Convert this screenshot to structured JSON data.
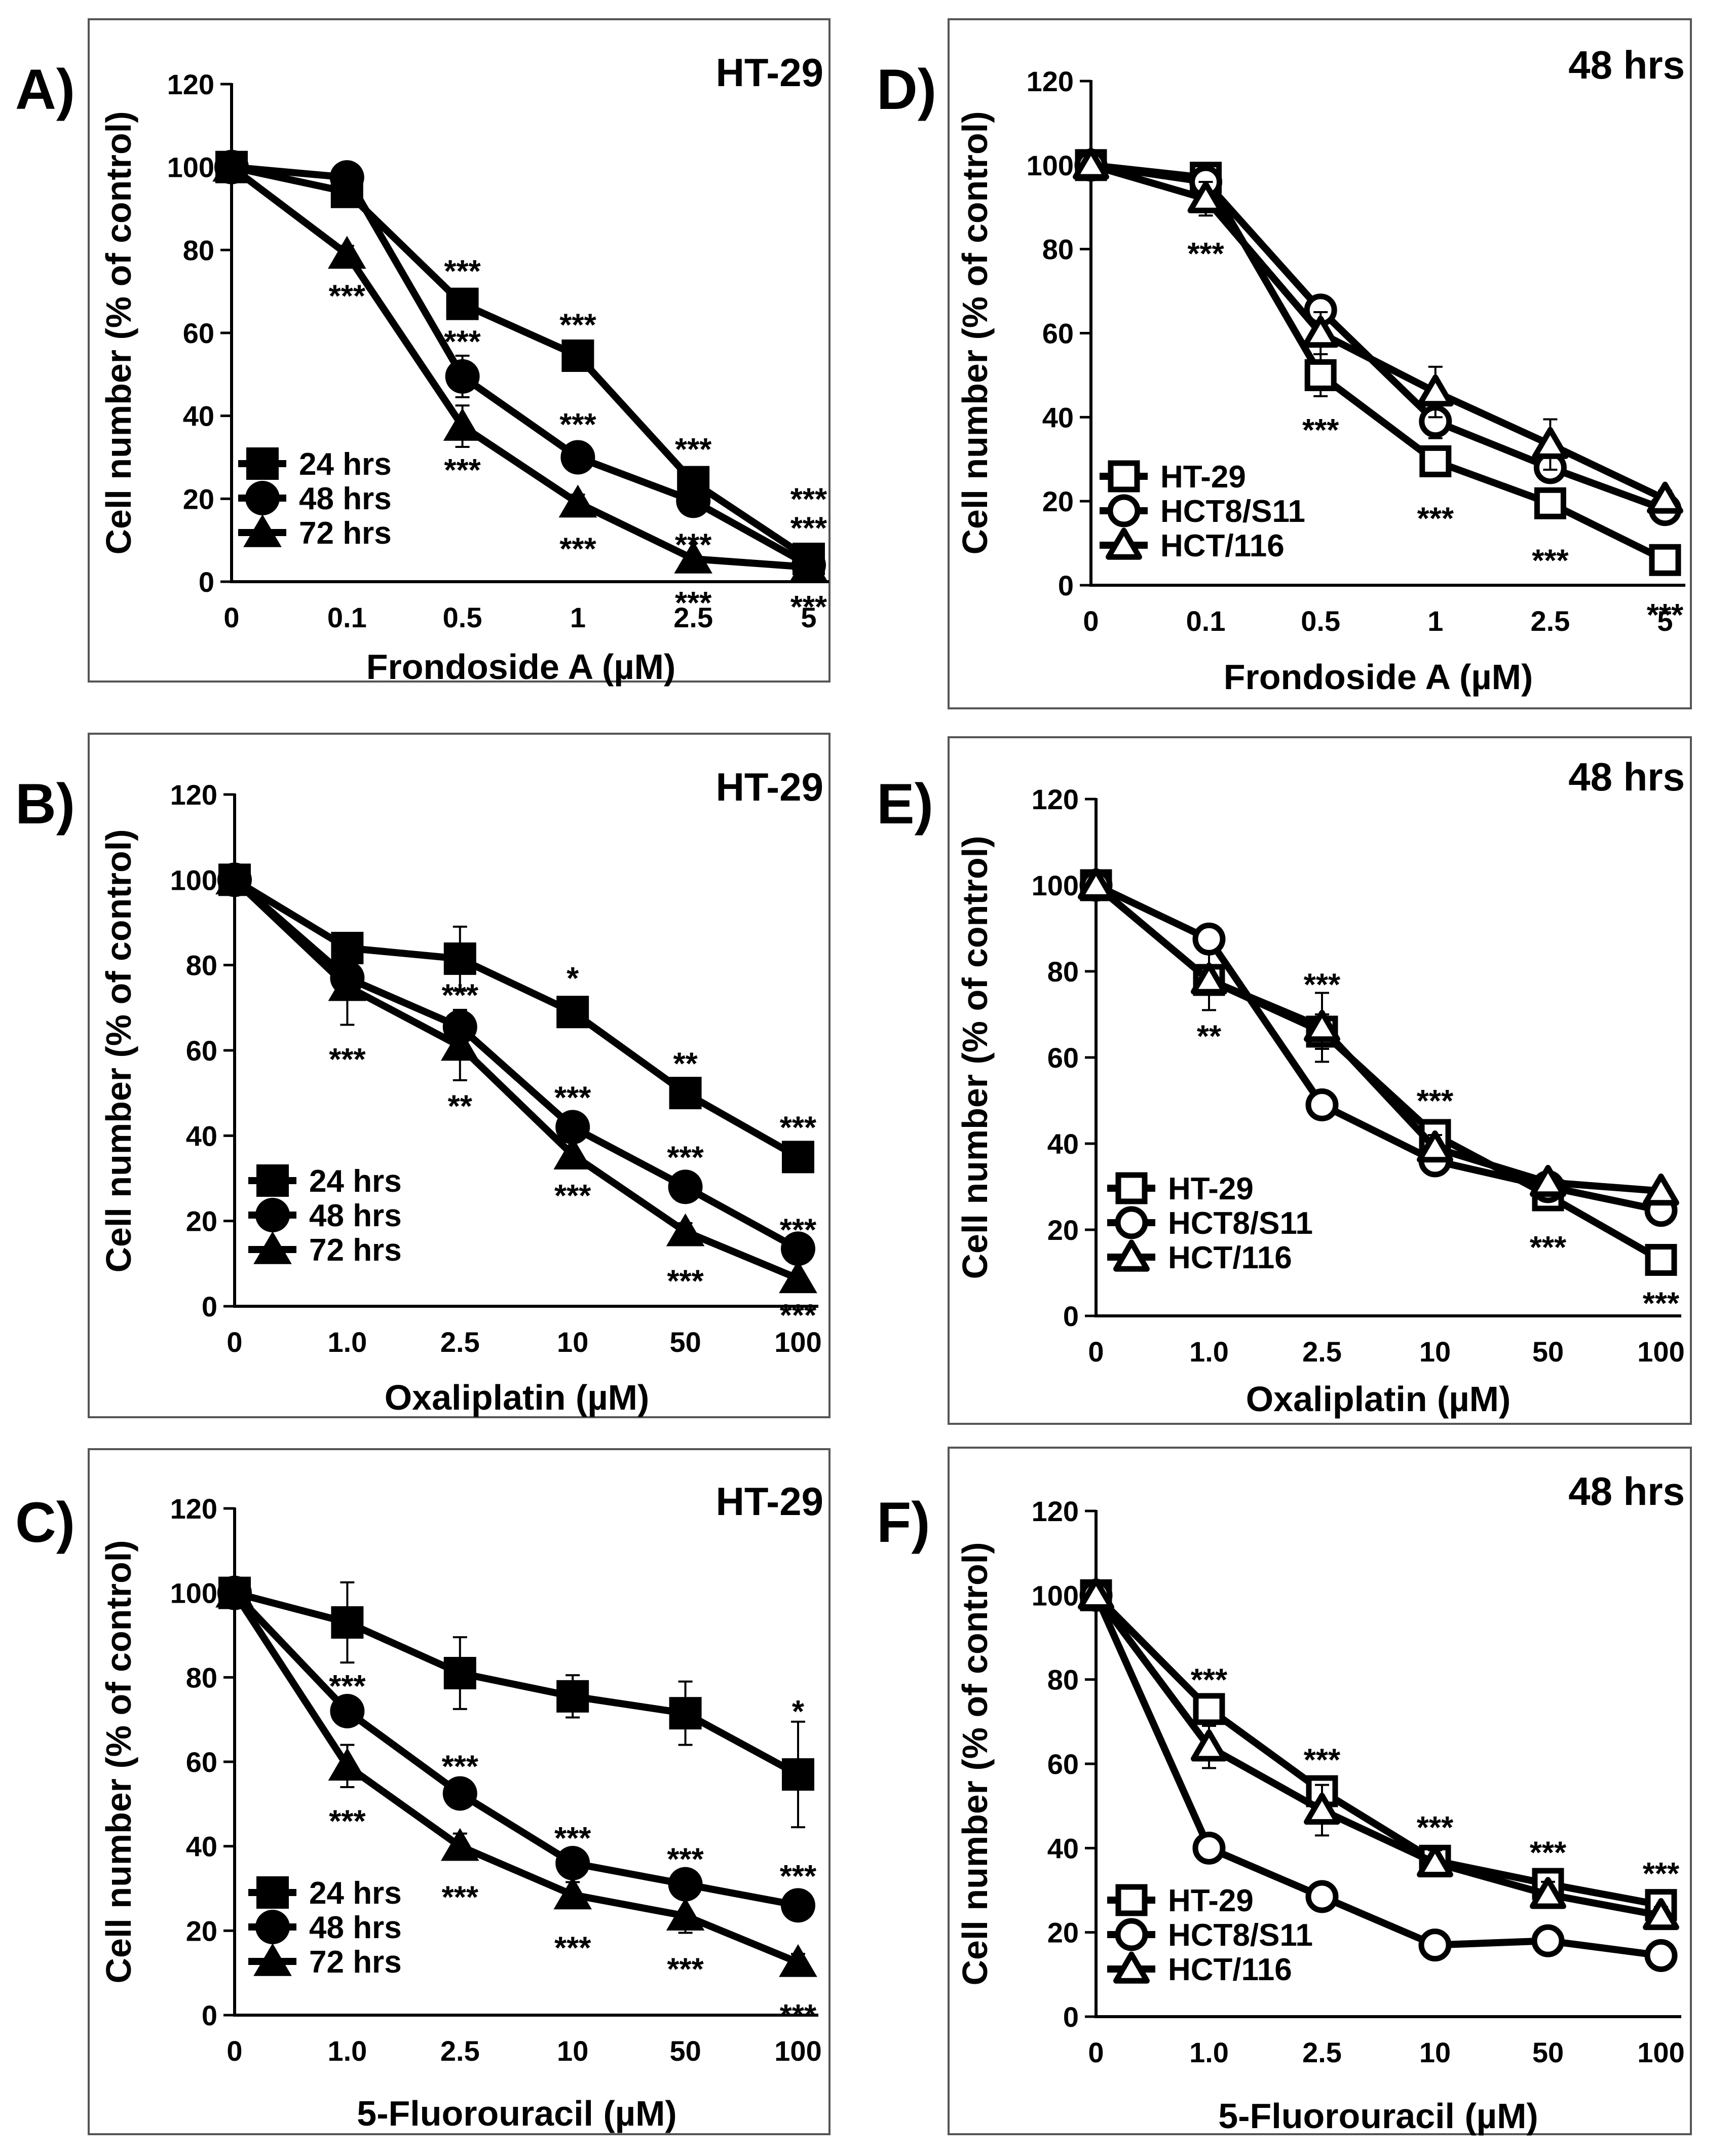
{
  "figure": {
    "colors": {
      "ink": "#000000",
      "frame": "#555555",
      "background": "#ffffff"
    },
    "axis": {
      "ylabel": "Cell number (% of control)",
      "yticks": [
        0,
        20,
        40,
        60,
        80,
        100,
        120
      ]
    }
  },
  "chart_data": [
    {
      "panel": "A)",
      "type": "line",
      "title": "HT-29",
      "xlabel": "Frondoside A (µM)",
      "ylabel": "Cell number (% of control)",
      "categories": [
        "0",
        "0.1",
        "0.5",
        "1",
        "2.5",
        "5"
      ],
      "ylim": [
        0,
        120
      ],
      "legend_position": "bottom-left",
      "series": [
        {
          "name": "24 hrs",
          "marker": "square-filled",
          "values": [
            100,
            94,
            67,
            54.5,
            24,
            5.5
          ],
          "errors": [
            0,
            2,
            3,
            2,
            3,
            1
          ]
        },
        {
          "name": "48 hrs",
          "marker": "circle-filled",
          "values": [
            100,
            97.5,
            49.5,
            30,
            19.5,
            4
          ],
          "errors": [
            0,
            3,
            5,
            3,
            2,
            1
          ]
        },
        {
          "name": "72 hrs",
          "marker": "triangle-filled",
          "values": [
            100,
            79,
            37.5,
            19,
            5.5,
            3.5
          ],
          "errors": [
            0,
            2,
            5,
            2,
            1,
            1
          ]
        }
      ],
      "annotations": [
        {
          "text": "***",
          "x": 1,
          "y": 69
        },
        {
          "text": "***",
          "x": 2,
          "y": 75
        },
        {
          "text": "***",
          "x": 2,
          "y": 58
        },
        {
          "text": "***",
          "x": 2,
          "y": 27
        },
        {
          "text": "***",
          "x": 3,
          "y": 62
        },
        {
          "text": "***",
          "x": 3,
          "y": 38
        },
        {
          "text": "***",
          "x": 3,
          "y": 8
        },
        {
          "text": "***",
          "x": 4,
          "y": 32
        },
        {
          "text": "***",
          "x": 4,
          "y": 9
        },
        {
          "text": "***",
          "x": 4,
          "y": -5
        },
        {
          "text": "***",
          "x": 5,
          "y": 20
        },
        {
          "text": "***",
          "x": 5,
          "y": 13
        },
        {
          "text": "***",
          "x": 5,
          "y": -6
        }
      ]
    },
    {
      "panel": "B)",
      "type": "line",
      "title": "HT-29",
      "xlabel": "Oxaliplatin (µM)",
      "ylabel": "Cell number (% of control)",
      "categories": [
        "0",
        "1.0",
        "2.5",
        "10",
        "50",
        "100"
      ],
      "ylim": [
        0,
        120
      ],
      "legend_position": "bottom-left",
      "series": [
        {
          "name": "24 hrs",
          "marker": "square-filled",
          "values": [
            100,
            84,
            81.5,
            69,
            50,
            35
          ],
          "errors": [
            0,
            3,
            7.5,
            3,
            3,
            2
          ]
        },
        {
          "name": "48 hrs",
          "marker": "circle-filled",
          "values": [
            100,
            77,
            65.5,
            42,
            28,
            13.5
          ],
          "errors": [
            0,
            4,
            4,
            3,
            2,
            2
          ]
        },
        {
          "name": "72 hrs",
          "marker": "triangle-filled",
          "values": [
            100,
            75,
            61,
            35.5,
            17.5,
            6.5
          ],
          "errors": [
            0,
            9,
            8,
            3,
            2,
            1
          ]
        }
      ],
      "annotations": [
        {
          "text": "***",
          "x": 1,
          "y": 58
        },
        {
          "text": "***",
          "x": 2,
          "y": 73
        },
        {
          "text": "**",
          "x": 2,
          "y": 47
        },
        {
          "text": "*",
          "x": 3,
          "y": 77
        },
        {
          "text": "***",
          "x": 3,
          "y": 49
        },
        {
          "text": "***",
          "x": 3,
          "y": 26
        },
        {
          "text": "**",
          "x": 4,
          "y": 57
        },
        {
          "text": "***",
          "x": 4,
          "y": 35
        },
        {
          "text": "***",
          "x": 4,
          "y": 6
        },
        {
          "text": "***",
          "x": 5,
          "y": 42
        },
        {
          "text": "***",
          "x": 5,
          "y": 18
        },
        {
          "text": "***",
          "x": 5,
          "y": -2
        }
      ]
    },
    {
      "panel": "C)",
      "type": "line",
      "title": "HT-29",
      "xlabel": "5-Fluorouracil (µM)",
      "ylabel": "Cell number (% of control)",
      "categories": [
        "0",
        "1.0",
        "2.5",
        "10",
        "50",
        "100"
      ],
      "ylim": [
        0,
        120
      ],
      "legend_position": "bottom-left",
      "series": [
        {
          "name": "24 hrs",
          "marker": "square-filled",
          "values": [
            100,
            93,
            81,
            75.5,
            71.5,
            57
          ],
          "errors": [
            0,
            9.5,
            8.5,
            5,
            7.5,
            12.5
          ]
        },
        {
          "name": "48 hrs",
          "marker": "circle-filled",
          "values": [
            100,
            72,
            52.5,
            36,
            31,
            26
          ],
          "errors": [
            0,
            3,
            3,
            3,
            3,
            2
          ]
        },
        {
          "name": "72 hrs",
          "marker": "triangle-filled",
          "values": [
            100,
            59,
            40,
            28.5,
            23.5,
            12.5
          ],
          "errors": [
            0,
            5,
            3,
            3,
            4,
            2
          ]
        }
      ],
      "annotations": [
        {
          "text": "***",
          "x": 1,
          "y": 78
        },
        {
          "text": "***",
          "x": 1,
          "y": 46
        },
        {
          "text": "***",
          "x": 2,
          "y": 59
        },
        {
          "text": "***",
          "x": 2,
          "y": 28
        },
        {
          "text": "***",
          "x": 3,
          "y": 42
        },
        {
          "text": "***",
          "x": 3,
          "y": 16
        },
        {
          "text": "***",
          "x": 4,
          "y": 37
        },
        {
          "text": "***",
          "x": 4,
          "y": 11
        },
        {
          "text": "*",
          "x": 5,
          "y": 72
        },
        {
          "text": "***",
          "x": 5,
          "y": 33
        },
        {
          "text": "***",
          "x": 5,
          "y": 0
        }
      ]
    },
    {
      "panel": "D)",
      "type": "line",
      "title": "48 hrs",
      "xlabel": "Frondoside A (µM)",
      "ylabel": "Cell number (% of control)",
      "categories": [
        "0",
        "0.1",
        "0.5",
        "1",
        "2.5",
        "5"
      ],
      "ylim": [
        0,
        120
      ],
      "legend_position": "bottom-left",
      "series": [
        {
          "name": "HT-29",
          "marker": "square-open",
          "values": [
            100,
            97,
            50,
            29.5,
            19.5,
            6
          ],
          "errors": [
            0,
            3,
            5,
            3,
            2,
            1
          ]
        },
        {
          "name": "HCT8/S11",
          "marker": "circle-open",
          "values": [
            100,
            96,
            65.5,
            39,
            28,
            18
          ],
          "errors": [
            0,
            2,
            3,
            4,
            3,
            2
          ]
        },
        {
          "name": "HCT/116",
          "marker": "triangle-open",
          "values": [
            100,
            92,
            60,
            46,
            33.5,
            20.5
          ],
          "errors": [
            0,
            4,
            5,
            6,
            6,
            2
          ]
        }
      ],
      "annotations": [
        {
          "text": "***",
          "x": 1,
          "y": 79
        },
        {
          "text": "***",
          "x": 2,
          "y": 37
        },
        {
          "text": "***",
          "x": 3,
          "y": 16
        },
        {
          "text": "***",
          "x": 4,
          "y": 6
        },
        {
          "text": "***",
          "x": 5,
          "y": -7
        }
      ]
    },
    {
      "panel": "E)",
      "type": "line",
      "title": "48 hrs",
      "xlabel": "Oxaliplatin (µM)",
      "ylabel": "Cell number (% of control)",
      "categories": [
        "0",
        "1.0",
        "2.5",
        "10",
        "50",
        "100"
      ],
      "ylim": [
        0,
        120
      ],
      "legend_position": "bottom-left",
      "series": [
        {
          "name": "HT-29",
          "marker": "square-open",
          "values": [
            100,
            78,
            66,
            42,
            28,
            13
          ],
          "errors": [
            0,
            7,
            4,
            3,
            2,
            2
          ]
        },
        {
          "name": "HCT8/S11",
          "marker": "circle-open",
          "values": [
            100,
            87.5,
            49,
            36,
            30,
            24.5
          ],
          "errors": [
            0,
            2,
            2,
            2,
            2,
            2
          ]
        },
        {
          "name": "HCT/116",
          "marker": "triangle-open",
          "values": [
            100,
            78,
            67,
            39,
            31,
            29
          ],
          "errors": [
            0,
            3,
            8,
            3,
            2,
            1
          ]
        }
      ],
      "annotations": [
        {
          "text": "**",
          "x": 1,
          "y": 65
        },
        {
          "text": "***",
          "x": 2,
          "y": 77
        },
        {
          "text": "***",
          "x": 3,
          "y": 50
        },
        {
          "text": "***",
          "x": 4,
          "y": 16
        },
        {
          "text": "***",
          "x": 5,
          "y": 3
        }
      ]
    },
    {
      "panel": "F)",
      "type": "line",
      "title": "48 hrs",
      "xlabel": "5-Fluorouracil (µM)",
      "ylabel": "Cell number (% of control)",
      "categories": [
        "0",
        "1.0",
        "2.5",
        "10",
        "50",
        "100"
      ],
      "ylim": [
        0,
        120
      ],
      "legend_position": "bottom-left",
      "series": [
        {
          "name": "HT-29",
          "marker": "square-open",
          "values": [
            100,
            73,
            53.5,
            37,
            31.5,
            26.5
          ],
          "errors": [
            0,
            3,
            3,
            2,
            2,
            2
          ]
        },
        {
          "name": "HCT8/S11",
          "marker": "circle-open",
          "values": [
            100,
            40,
            28.5,
            17,
            18,
            14.5
          ],
          "errors": [
            0,
            2,
            2,
            2,
            2,
            2
          ]
        },
        {
          "name": "HCT/116",
          "marker": "triangle-open",
          "values": [
            100,
            64,
            49,
            36.5,
            29,
            24
          ],
          "errors": [
            0,
            5,
            6,
            3,
            3,
            2
          ]
        }
      ],
      "annotations": [
        {
          "text": "***",
          "x": 1,
          "y": 80
        },
        {
          "text": "***",
          "x": 2,
          "y": 61
        },
        {
          "text": "***",
          "x": 3,
          "y": 45
        },
        {
          "text": "***",
          "x": 4,
          "y": 39
        },
        {
          "text": "***",
          "x": 5,
          "y": 34
        }
      ]
    }
  ]
}
